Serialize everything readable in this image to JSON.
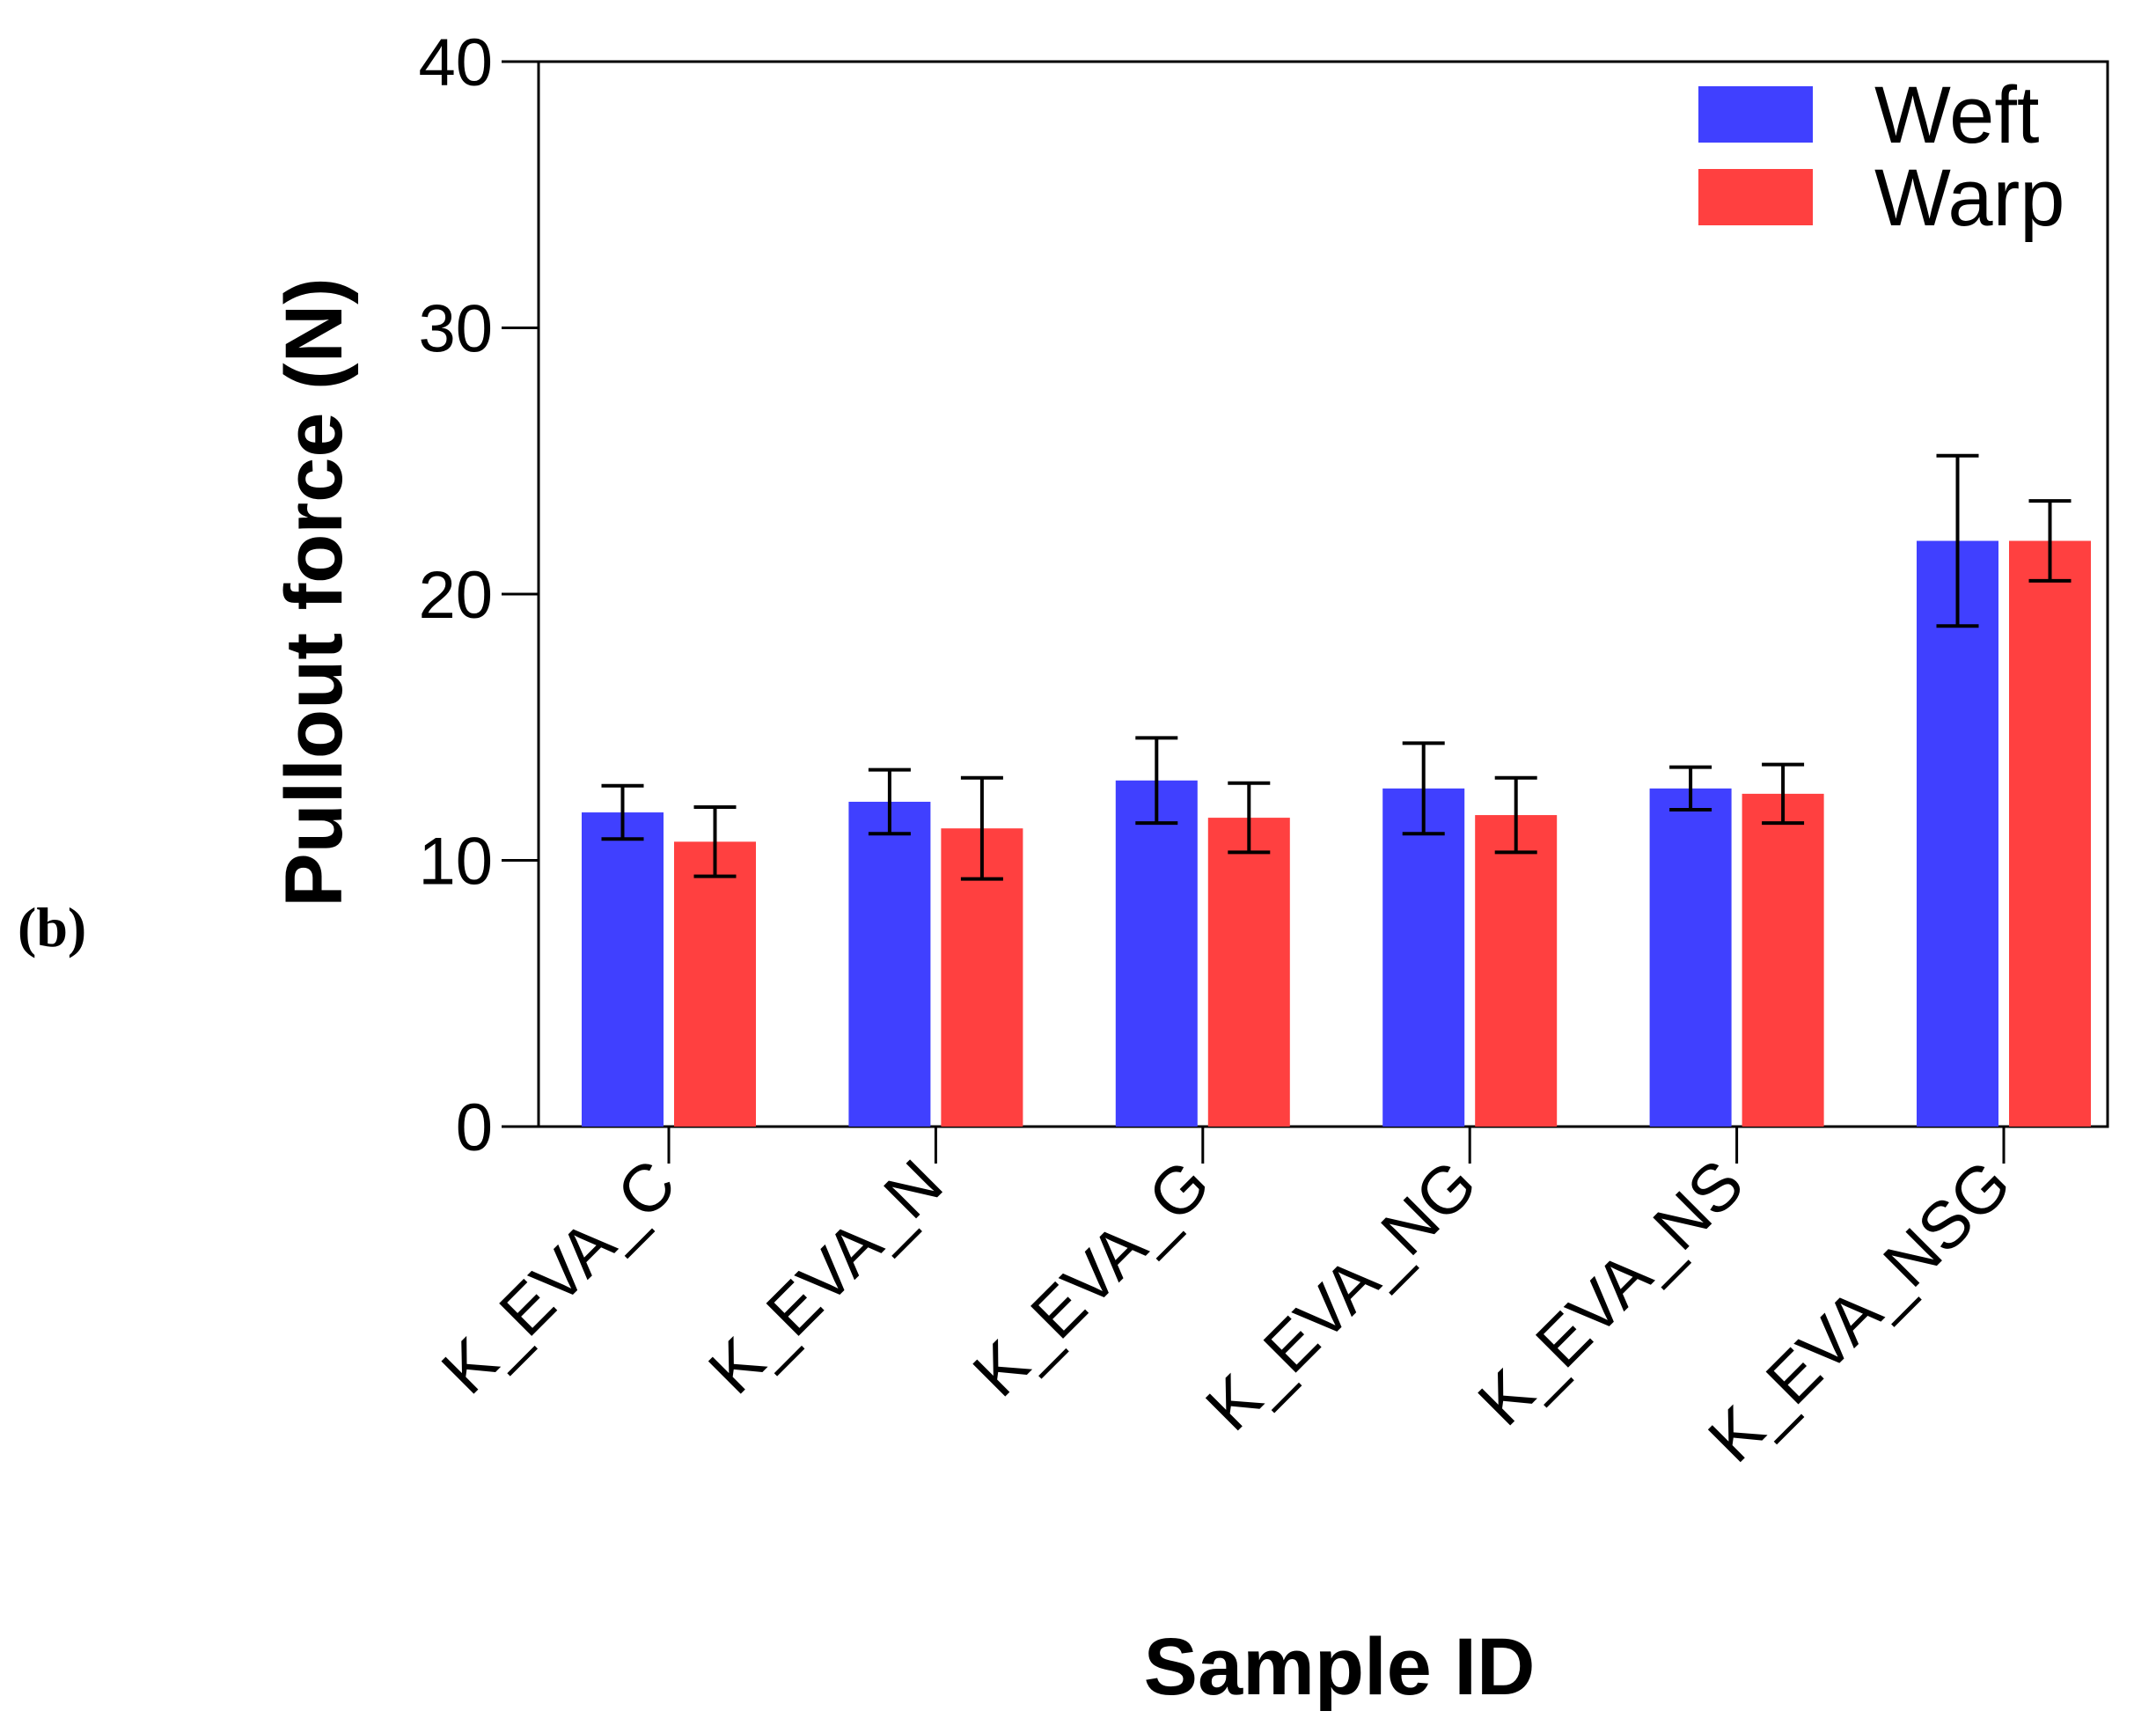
{
  "panel_label": "(b)",
  "chart_data": {
    "type": "bar",
    "title": "",
    "xlabel": "Sample ID",
    "ylabel": "Pullout force (N)",
    "ylim": [
      0,
      40
    ],
    "yticks": [
      0,
      10,
      20,
      30,
      40
    ],
    "categories": [
      "K_EVA_C",
      "K_EVA_N",
      "K_EVA_G",
      "K_EVA_NG",
      "K_EVA_NS",
      "K_EVA_NSG"
    ],
    "series": [
      {
        "name": "Weft",
        "color": "#4040ff",
        "values": [
          11.8,
          12.2,
          13.0,
          12.7,
          12.7,
          22.0
        ],
        "errors": [
          1.0,
          1.2,
          1.6,
          1.7,
          0.8,
          3.2
        ]
      },
      {
        "name": "Warp",
        "color": "#ff4040",
        "values": [
          10.7,
          11.2,
          11.6,
          11.7,
          12.5,
          22.0
        ],
        "errors": [
          1.3,
          1.9,
          1.3,
          1.4,
          1.1,
          1.5
        ]
      }
    ],
    "legend_position": "top-right",
    "grid": false
  }
}
